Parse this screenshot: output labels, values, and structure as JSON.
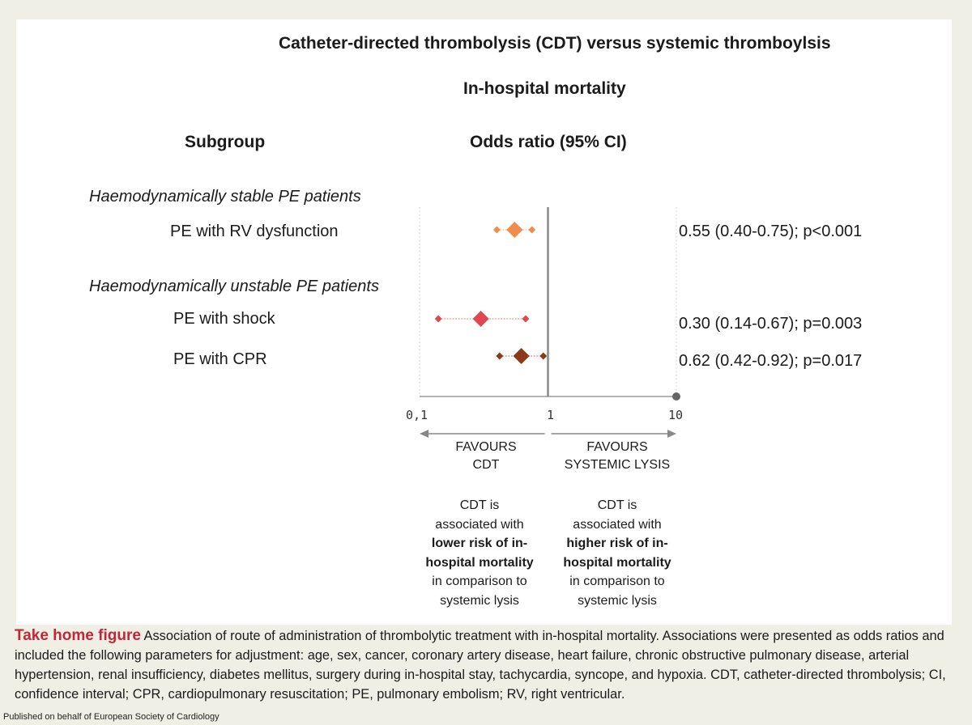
{
  "chart_data": {
    "type": "forest",
    "title": "Catheter-directed thrombolysis (CDT) versus systemic thromboylsis",
    "subtitle": "In-hospital mortality",
    "subgroup_header": "Subgroup",
    "effect_header": "Odds ratio (95% CI)",
    "xscale": "log",
    "xlim": [
      0.1,
      10
    ],
    "reference_line": 1,
    "xticks": [
      "0,1",
      "1",
      "10"
    ],
    "groups": [
      {
        "label": "Haemodynamically stable PE patients",
        "rows": [
          {
            "label": "PE with RV dysfunction",
            "or": 0.55,
            "ci_low": 0.4,
            "ci_high": 0.75,
            "result_text": "0.55 (0.40-0.75); p<0.001",
            "color": "#f28c4a"
          }
        ]
      },
      {
        "label": "Haemodynamically unstable PE patients",
        "rows": [
          {
            "label": "PE with shock",
            "or": 0.3,
            "ci_low": 0.14,
            "ci_high": 0.67,
            "result_text": "0.30 (0.14-0.67); p=0.003",
            "color": "#e0474f"
          },
          {
            "label": "PE with CPR",
            "or": 0.62,
            "ci_low": 0.42,
            "ci_high": 0.92,
            "result_text": "0.62 (0.42-0.92); p=0.017",
            "color": "#8b3a1a"
          }
        ]
      }
    ],
    "favours_left": [
      "FAVOURS",
      "CDT"
    ],
    "favours_right": [
      "FAVOURS",
      "SYSTEMIC LYSIS"
    ],
    "explain_left": {
      "l1": "CDT is",
      "l2": "associated with",
      "b1": "lower risk of in-",
      "b2": "hospital mortality",
      "l3": "in comparison to",
      "l4": "systemic lysis"
    },
    "explain_right": {
      "l1": "CDT is",
      "l2": "associated with",
      "b1": "higher risk of in-",
      "b2": "hospital mortality",
      "l3": "in comparison to",
      "l4": "systemic lysis"
    }
  },
  "caption": {
    "title": "Take home figure",
    "text": " Association of route of administration of thrombolytic treatment with in-hospital mortality. Associations were presented as odds ratios and included the following parameters for adjustment: age, sex, cancer, coronary artery disease, heart failure, chronic obstructive pulmonary disease, arterial hypertension, renal insufficiency, diabetes mellitus, surgery during in-hospital stay, tachycardia, syncope, and hypoxia. CDT, catheter-directed thrombolysis; CI, confidence interval; CPR, cardiopulmonary resuscitation; PE, pulmonary embolism; RV, right ventricular."
  },
  "publisher": "Published on behalf of European Society of Cardiology",
  "colors": {
    "axis": "#9a9a9a",
    "reference": "#8a8a8a",
    "arrow": "#888888",
    "caption_title": "#c0283a"
  }
}
